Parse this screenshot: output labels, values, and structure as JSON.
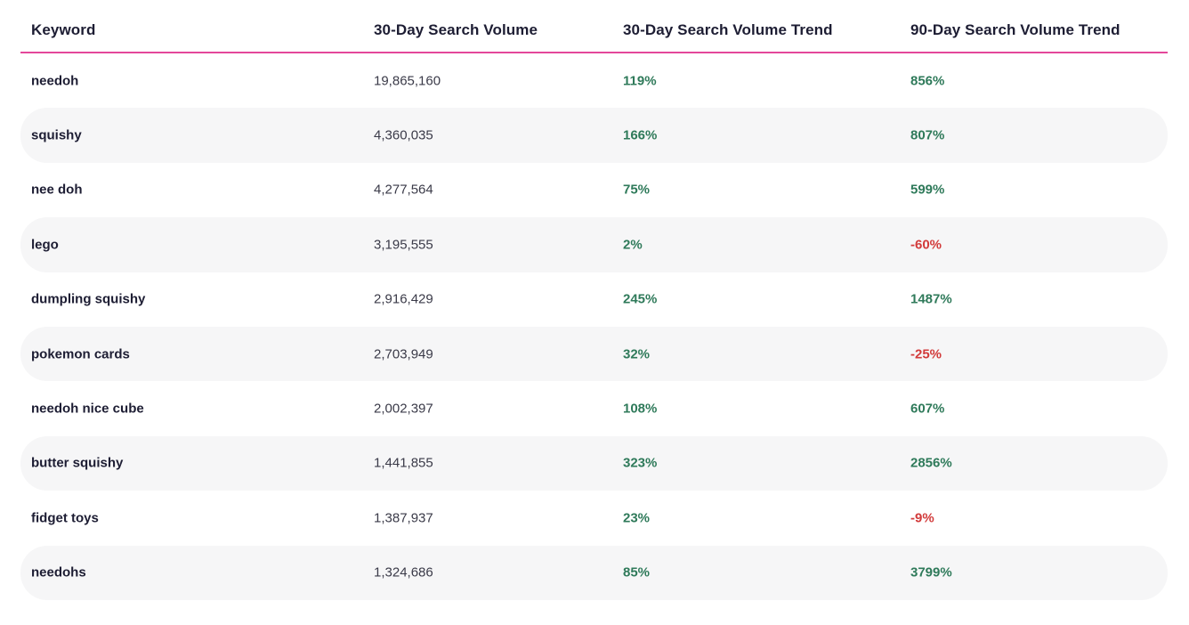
{
  "colors": {
    "header_rule": "#e4479a",
    "positive": "#2f7a5a",
    "negative": "#d23b3b",
    "row_shade": "#f6f6f7"
  },
  "table": {
    "headers": {
      "keyword": "Keyword",
      "volume_30": "30-Day Search Volume",
      "trend_30": "30-Day Search Volume Trend",
      "trend_90": "90-Day Search Volume Trend"
    },
    "rows": [
      {
        "keyword": "needoh",
        "volume_30": "19,865,160",
        "trend_30": "119%",
        "trend_90": "856%"
      },
      {
        "keyword": "squishy",
        "volume_30": "4,360,035",
        "trend_30": "166%",
        "trend_90": "807%"
      },
      {
        "keyword": "nee doh",
        "volume_30": "4,277,564",
        "trend_30": "75%",
        "trend_90": "599%"
      },
      {
        "keyword": "lego",
        "volume_30": "3,195,555",
        "trend_30": "2%",
        "trend_90": "-60%"
      },
      {
        "keyword": "dumpling squishy",
        "volume_30": "2,916,429",
        "trend_30": "245%",
        "trend_90": "1487%"
      },
      {
        "keyword": "pokemon cards",
        "volume_30": "2,703,949",
        "trend_30": "32%",
        "trend_90": "-25%"
      },
      {
        "keyword": "needoh nice cube",
        "volume_30": "2,002,397",
        "trend_30": "108%",
        "trend_90": "607%"
      },
      {
        "keyword": "butter squishy",
        "volume_30": "1,441,855",
        "trend_30": "323%",
        "trend_90": "2856%"
      },
      {
        "keyword": "fidget toys",
        "volume_30": "1,387,937",
        "trend_30": "23%",
        "trend_90": "-9%"
      },
      {
        "keyword": "needohs",
        "volume_30": "1,324,686",
        "trend_30": "85%",
        "trend_90": "3799%"
      }
    ]
  }
}
